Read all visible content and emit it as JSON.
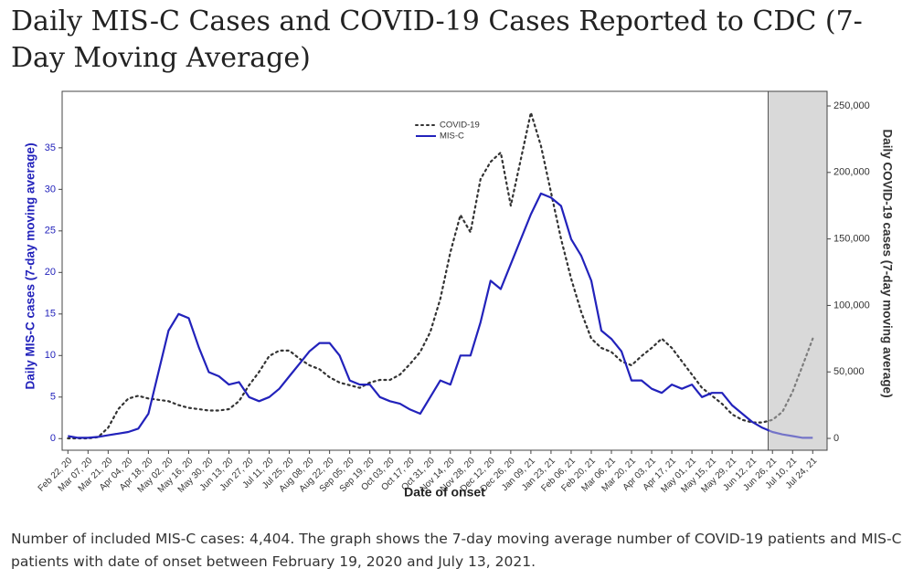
{
  "chart_data": {
    "type": "line",
    "title": "Daily MIS-C Cases and COVID-19 Cases Reported to CDC (7-Day Moving Average)",
    "caption": "Number of included MIS-C cases: 4,404. The graph shows the 7-day moving average number of COVID-19 patients and MIS-C patients with date of onset between February 19, 2020 and July 13, 2021.",
    "x_label": "Date of onset",
    "y_label": "Daily MIS-C cases (7-day moving average)",
    "y2_label": "Daily COVID-19 cases (7-day moving average)",
    "legend": "top",
    "shade_start": "2021-06-23",
    "x": [
      "2020-02-22",
      "2020-02-29",
      "2020-03-07",
      "2020-03-14",
      "2020-03-21",
      "2020-03-28",
      "2020-04-04",
      "2020-04-11",
      "2020-04-18",
      "2020-04-25",
      "2020-05-02",
      "2020-05-09",
      "2020-05-16",
      "2020-05-23",
      "2020-05-30",
      "2020-06-06",
      "2020-06-13",
      "2020-06-20",
      "2020-06-27",
      "2020-07-04",
      "2020-07-11",
      "2020-07-18",
      "2020-07-25",
      "2020-08-01",
      "2020-08-08",
      "2020-08-15",
      "2020-08-22",
      "2020-08-29",
      "2020-09-05",
      "2020-09-12",
      "2020-09-19",
      "2020-09-26",
      "2020-10-03",
      "2020-10-10",
      "2020-10-17",
      "2020-10-24",
      "2020-10-31",
      "2020-11-07",
      "2020-11-14",
      "2020-11-21",
      "2020-11-28",
      "2020-12-05",
      "2020-12-12",
      "2020-12-19",
      "2020-12-26",
      "2021-01-02",
      "2021-01-09",
      "2021-01-16",
      "2021-01-23",
      "2021-01-30",
      "2021-02-06",
      "2021-02-13",
      "2021-02-20",
      "2021-02-27",
      "2021-03-06",
      "2021-03-13",
      "2021-03-20",
      "2021-03-27",
      "2021-04-03",
      "2021-04-10",
      "2021-04-17",
      "2021-04-24",
      "2021-05-01",
      "2021-05-08",
      "2021-05-15",
      "2021-05-22",
      "2021-05-29",
      "2021-06-05",
      "2021-06-12",
      "2021-06-19",
      "2021-06-26",
      "2021-07-03",
      "2021-07-10",
      "2021-07-17",
      "2021-07-24"
    ],
    "series": [
      {
        "name": "COVID-19",
        "color": "#333333",
        "axis": "y2",
        "dash": true,
        "values": [
          0,
          0,
          0,
          1000,
          8000,
          22000,
          30000,
          32000,
          30000,
          29000,
          28000,
          25000,
          23000,
          22000,
          21000,
          21000,
          22000,
          28000,
          40000,
          50000,
          62000,
          66000,
          66000,
          60000,
          55000,
          52000,
          46000,
          42000,
          40000,
          38000,
          42000,
          44000,
          44000,
          48000,
          56000,
          65000,
          80000,
          105000,
          140000,
          168000,
          155000,
          195000,
          208000,
          215000,
          175000,
          210000,
          245000,
          220000,
          185000,
          150000,
          120000,
          95000,
          75000,
          68000,
          65000,
          58000,
          55000,
          62000,
          68000,
          75000,
          68000,
          58000,
          48000,
          38000,
          32000,
          26000,
          18000,
          14000,
          12000,
          12000,
          14000,
          20000,
          35000,
          55000,
          75000
        ]
      },
      {
        "name": "MIS-C",
        "color": "#2222bb",
        "axis": "y",
        "values": [
          0.3,
          0.1,
          0.1,
          0.2,
          0.4,
          0.6,
          0.8,
          1.2,
          3,
          8,
          13,
          15,
          14.5,
          11,
          8,
          7.5,
          6.5,
          6.8,
          5,
          4.5,
          5,
          6,
          7.5,
          9,
          10.5,
          11.5,
          11.5,
          10,
          7,
          6.5,
          6.5,
          5,
          4.5,
          4.2,
          3.5,
          3,
          5,
          7,
          6.5,
          10,
          10,
          14,
          19,
          18,
          21,
          24,
          27,
          29.5,
          29,
          28,
          24,
          22,
          19,
          13,
          12,
          10.5,
          7,
          7,
          6,
          5.5,
          6.5,
          6,
          6.5,
          5,
          5.5,
          5.5,
          4,
          3,
          2,
          1.3,
          0.8,
          0.5,
          0.3,
          0.1,
          0.1
        ]
      }
    ],
    "xlim": [
      "2020-02-18",
      "2021-08-03"
    ],
    "xticks": [
      {
        "value": "2020-02-22",
        "label": "Feb 22, 20"
      },
      {
        "value": "2020-03-07",
        "label": "Mar 07, 20"
      },
      {
        "value": "2020-03-21",
        "label": "Mar 21, 20"
      },
      {
        "value": "2020-04-04",
        "label": "Apr 04, 20"
      },
      {
        "value": "2020-04-18",
        "label": "Apr 18, 20"
      },
      {
        "value": "2020-05-02",
        "label": "May 02, 20"
      },
      {
        "value": "2020-05-16",
        "label": "May 16, 20"
      },
      {
        "value": "2020-05-30",
        "label": "May 30, 20"
      },
      {
        "value": "2020-06-13",
        "label": "Jun 13, 20"
      },
      {
        "value": "2020-06-27",
        "label": "Jun 27, 20"
      },
      {
        "value": "2020-07-11",
        "label": "Jul 11, 20"
      },
      {
        "value": "2020-07-25",
        "label": "Jul 25, 20"
      },
      {
        "value": "2020-08-08",
        "label": "Aug 08, 20"
      },
      {
        "value": "2020-08-22",
        "label": "Aug 22, 20"
      },
      {
        "value": "2020-09-05",
        "label": "Sep 05, 20"
      },
      {
        "value": "2020-09-19",
        "label": "Sep 19, 20"
      },
      {
        "value": "2020-10-03",
        "label": "Oct 03, 20"
      },
      {
        "value": "2020-10-17",
        "label": "Oct 17, 20"
      },
      {
        "value": "2020-10-31",
        "label": "Oct 31, 20"
      },
      {
        "value": "2020-11-14",
        "label": "Nov 14, 20"
      },
      {
        "value": "2020-11-28",
        "label": "Nov 28, 20"
      },
      {
        "value": "2020-12-12",
        "label": "Dec 12, 20"
      },
      {
        "value": "2020-12-26",
        "label": "Dec 26, 20"
      },
      {
        "value": "2021-01-09",
        "label": "Jan 09, 21"
      },
      {
        "value": "2021-01-23",
        "label": "Jan 23, 21"
      },
      {
        "value": "2021-02-06",
        "label": "Feb 06, 21"
      },
      {
        "value": "2021-02-20",
        "label": "Feb 20, 21"
      },
      {
        "value": "2021-03-06",
        "label": "Mar 06, 21"
      },
      {
        "value": "2021-03-20",
        "label": "Mar 20, 21"
      },
      {
        "value": "2021-04-03",
        "label": "Apr 03, 21"
      },
      {
        "value": "2021-04-17",
        "label": "Apr 17, 21"
      },
      {
        "value": "2021-05-01",
        "label": "May 01, 21"
      },
      {
        "value": "2021-05-15",
        "label": "May 15, 21"
      },
      {
        "value": "2021-05-29",
        "label": "May 29, 21"
      },
      {
        "value": "2021-06-12",
        "label": "Jun 12, 21"
      },
      {
        "value": "2021-06-26",
        "label": "Jun 26, 21"
      },
      {
        "value": "2021-07-10",
        "label": "Jul 10, 21"
      },
      {
        "value": "2021-07-24",
        "label": "Jul 24, 21"
      }
    ],
    "ylim": [
      -1.4,
      41.8
    ],
    "yticks": [
      0,
      5,
      10,
      15,
      20,
      25,
      30,
      35
    ],
    "y2lim": [
      -8900,
      261000
    ],
    "y2ticks": [
      0,
      {
        "value": 50000,
        "label": "50,000"
      },
      {
        "value": 100000,
        "label": "100,000"
      },
      {
        "value": 150000,
        "label": "150,000"
      },
      {
        "value": 200000,
        "label": "200,000"
      },
      {
        "value": 250000,
        "label": "250,000"
      }
    ]
  }
}
